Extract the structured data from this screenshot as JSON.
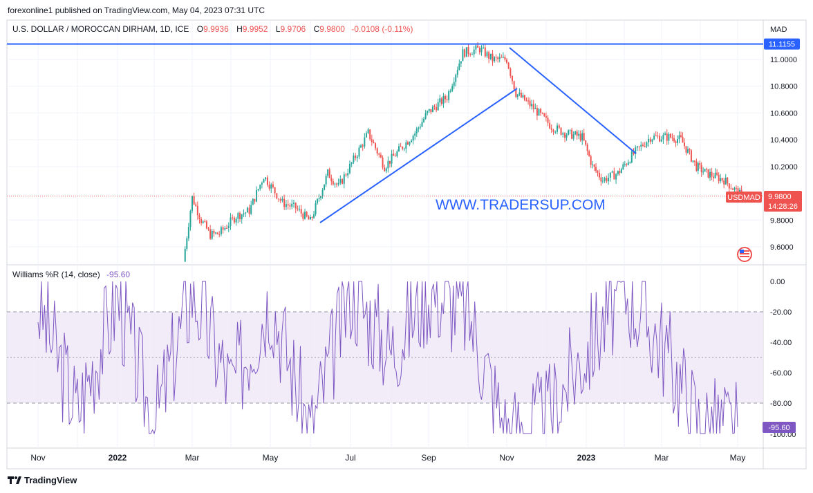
{
  "header": {
    "published": "forexonline1 published on TradingView.com, May 04, 2023 07:31 UTC"
  },
  "legend": {
    "symbol": "U.S. DOLLAR / MOROCCAN DIRHAM, 1D, ICE",
    "o_label": "O",
    "o_value": "9.9936",
    "h_label": "H",
    "h_value": "9.9952",
    "l_label": "L",
    "l_value": "9.9706",
    "c_label": "C",
    "c_value": "9.9800",
    "change": "-0.0108 (-0.11%)"
  },
  "watermark": "WWW.TRADERSUP.COM",
  "price_axis": {
    "currency": "MAD",
    "ticks": [
      "11.0000",
      "10.8000",
      "10.6000",
      "10.4000",
      "10.2000",
      "9.8000",
      "9.6000"
    ],
    "level_label": "11.1155",
    "price_label": "9.9800",
    "symbol_label": "USDMAD",
    "countdown": "14:28:26"
  },
  "time_axis": {
    "labels": [
      "Nov",
      "2022",
      "Mar",
      "May",
      "Jul",
      "Sep",
      "Nov",
      "2023",
      "Mar",
      "May"
    ]
  },
  "indicator": {
    "title": "Williams %R (14, close)",
    "value": "-95.60",
    "ticks": [
      "0.00",
      "-20.00",
      "-40.00",
      "-60.00",
      "-80.00"
    ],
    "value_label": "-95.60",
    "partial_tick": "-100.00"
  },
  "footer": {
    "brand": "TradingView"
  },
  "colors": {
    "up": "#26a69a",
    "down": "#ef5350",
    "trendline": "#2962ff",
    "wr_line": "#7e57c2",
    "wr_fill": "#ede7f6",
    "price_label_bg": "#ef5350"
  },
  "chart_data": {
    "type": "line",
    "title": "U.S. DOLLAR / MOROCCAN DIRHAM, 1D, ICE",
    "ylabel": "MAD",
    "ylim": [
      9.48,
      11.16
    ],
    "x": [
      "2021-11",
      "2022-01",
      "2022-03",
      "2022-05",
      "2022-07",
      "2022-09",
      "2022-11",
      "2023-01",
      "2023-03",
      "2023-05"
    ],
    "series": [
      {
        "name": "U.S. DOLLAR / MOROCCAN DIRHAM",
        "x": [
          "2022-02-24",
          "2022-03-01",
          "2022-03-08",
          "2022-03-15",
          "2022-03-22",
          "2022-04-05",
          "2022-04-15",
          "2022-04-26",
          "2022-05-10",
          "2022-05-20",
          "2022-06-01",
          "2022-06-14",
          "2022-06-22",
          "2022-07-06",
          "2022-07-14",
          "2022-07-26",
          "2022-08-10",
          "2022-08-20",
          "2022-08-30",
          "2022-09-15",
          "2022-09-27",
          "2022-10-10",
          "2022-10-20",
          "2022-11-01",
          "2022-11-08",
          "2022-11-20",
          "2022-12-05",
          "2022-12-15",
          "2022-12-28",
          "2023-01-06",
          "2023-01-14",
          "2023-01-26",
          "2023-02-07",
          "2023-02-22",
          "2023-03-08",
          "2023-03-16",
          "2023-03-28",
          "2023-04-06",
          "2023-04-20",
          "2023-05-04"
        ],
        "values": [
          9.49,
          9.97,
          9.8,
          9.69,
          9.7,
          9.83,
          9.87,
          10.13,
          9.93,
          9.89,
          9.79,
          10.15,
          10.05,
          10.3,
          10.45,
          10.2,
          10.35,
          10.45,
          10.6,
          10.72,
          11.05,
          11.08,
          11.0,
          11.0,
          10.75,
          10.65,
          10.5,
          10.45,
          10.42,
          10.2,
          10.1,
          10.15,
          10.28,
          10.42,
          10.42,
          10.4,
          10.2,
          10.15,
          10.1,
          9.98
        ]
      },
      {
        "name": "Williams %R (14, close)",
        "x": [
          "2021-11",
          "2021-12",
          "2022-01",
          "2022-02",
          "2022-03",
          "2022-04",
          "2022-05",
          "2022-06",
          "2022-07",
          "2022-08",
          "2022-09",
          "2022-10",
          "2022-11",
          "2022-12",
          "2023-01",
          "2023-02",
          "2023-03",
          "2023-04",
          "2023-05"
        ],
        "values": [
          -15,
          -85,
          -10,
          -95,
          -5,
          -70,
          -10,
          -100,
          -5,
          -45,
          -5,
          -20,
          -100,
          -90,
          -45,
          -5,
          -40,
          -95,
          -95.6
        ]
      }
    ],
    "levels": [
      11.1155
    ],
    "indicator_ylim": [
      -100,
      0
    ],
    "indicator_levels": [
      -20,
      -50,
      -80
    ],
    "grid": true,
    "legend": "top-left"
  }
}
